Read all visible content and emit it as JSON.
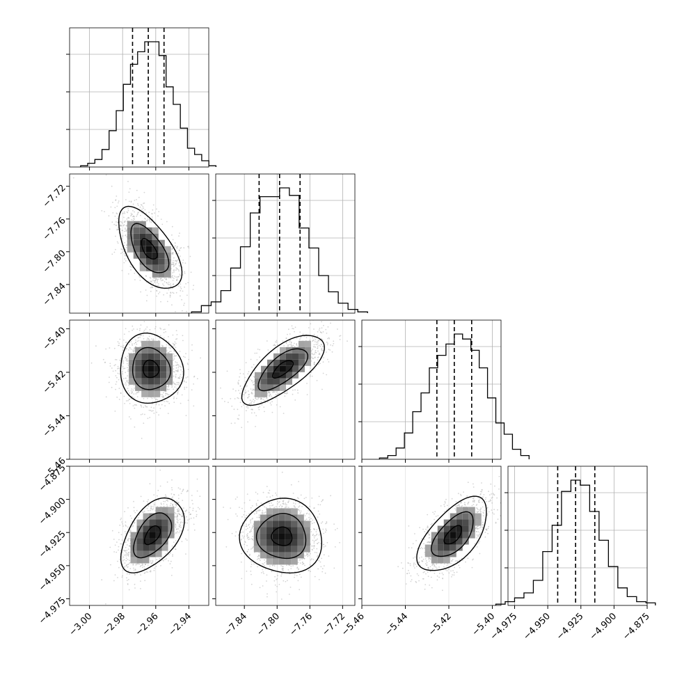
{
  "chart_data": {
    "type": "corner",
    "parameters": [
      {
        "index": 0,
        "quantiles": [
          -2.974,
          -2.9645,
          -2.955
        ],
        "range": [
          -3.012,
          -2.928
        ],
        "ticks": [
          -3.0,
          -2.98,
          -2.96,
          -2.94
        ],
        "tick_labels": [
          "−3.00",
          "−2.98",
          "−2.96",
          "−2.94"
        ],
        "hist_counts": [
          0.01,
          0.03,
          0.06,
          0.14,
          0.29,
          0.45,
          0.66,
          0.82,
          0.92,
          1.0,
          1.0,
          0.89,
          0.64,
          0.5,
          0.31,
          0.15,
          0.1,
          0.05,
          0.01
        ]
      },
      {
        "index": 1,
        "quantiles": [
          -7.822,
          -7.797,
          -7.772
        ],
        "range": [
          -7.875,
          -7.705
        ],
        "ticks": [
          -7.84,
          -7.8,
          -7.76,
          -7.72
        ],
        "tick_labels": [
          "−7.84",
          "−7.80",
          "−7.76",
          "−7.72"
        ],
        "hist_counts": [
          0.01,
          0.06,
          0.09,
          0.18,
          0.36,
          0.53,
          0.8,
          0.93,
          0.93,
          1.0,
          0.94,
          0.68,
          0.52,
          0.3,
          0.17,
          0.08,
          0.03,
          0.01
        ]
      },
      {
        "index": 2,
        "quantiles": [
          -5.4255,
          -5.4175,
          -5.4095
        ],
        "range": [
          -5.46,
          -5.396
        ],
        "ticks": [
          -5.46,
          -5.44,
          -5.42,
          -5.4
        ],
        "tick_labels": [
          "−5.46",
          "−5.44",
          "−5.42",
          "−5.40"
        ],
        "hist_counts": [
          0.01,
          0.03,
          0.09,
          0.21,
          0.38,
          0.53,
          0.73,
          0.83,
          0.92,
          1.0,
          0.96,
          0.87,
          0.73,
          0.49,
          0.29,
          0.2,
          0.08,
          0.03
        ]
      },
      {
        "index": 3,
        "quantiles": [
          -4.9425,
          -4.929,
          -4.9145
        ],
        "range": [
          -4.98,
          -4.875
        ],
        "ticks": [
          -4.975,
          -4.95,
          -4.925,
          -4.9,
          -4.875
        ],
        "tick_labels": [
          "−4.975",
          "−4.950",
          "−4.925",
          "−4.900",
          "−4.875"
        ],
        "hist_counts": [
          0.01,
          0.03,
          0.06,
          0.1,
          0.2,
          0.43,
          0.64,
          0.91,
          1.0,
          0.96,
          0.75,
          0.52,
          0.31,
          0.14,
          0.07,
          0.03,
          0.02
        ]
      }
    ],
    "hist_ticks": [
      0,
      0.3,
      0.6,
      0.9
    ],
    "correlations": {
      "0-1": -0.6,
      "0-2": -0.05,
      "1-2": 0.7,
      "0-3": 0.5,
      "1-3": -0.05,
      "2-3": 0.6
    },
    "pair_centers": {
      "0-1": [
        -2.964,
        -7.797
      ],
      "0-2": [
        -2.963,
        -5.4185
      ],
      "1-2": [
        -7.793,
        -5.4185
      ],
      "0-3": [
        -2.962,
        -4.927
      ],
      "1-3": [
        -7.794,
        -4.928
      ],
      "2-3": [
        -5.418,
        -4.927
      ]
    },
    "contour_levels": [
      0.5,
      1.2,
      2.0
    ],
    "grid": true,
    "line_color": "#000000",
    "point_color": "#b0b0b0"
  }
}
